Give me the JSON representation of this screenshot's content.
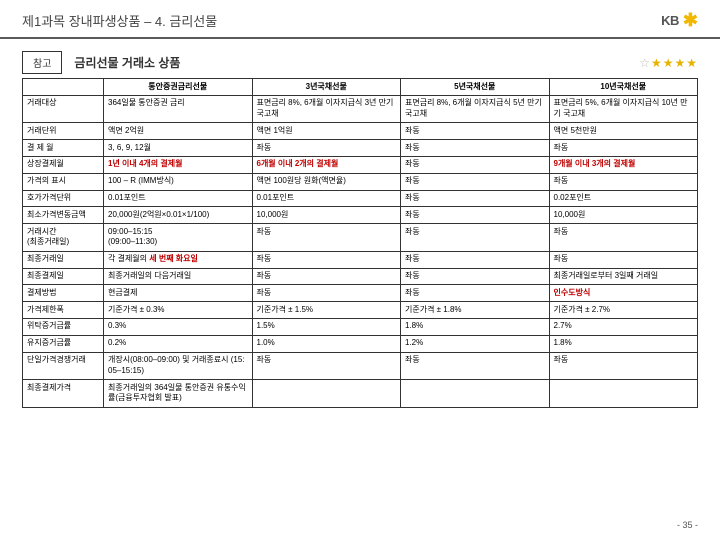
{
  "header": {
    "chapter_title": "제1과목 장내파생상품 – 4. 금리선물",
    "logo_text": "KB",
    "logo_star_glyph": "✱"
  },
  "subheader": {
    "ref_label": "참고",
    "section_title": "금리선물 거래소 상품",
    "stars_blank": "☆",
    "stars_filled": "★★★★"
  },
  "table": {
    "columns": [
      {
        "key": "c0",
        "label": ""
      },
      {
        "key": "c1",
        "label": "통안증권금리선물"
      },
      {
        "key": "c2",
        "label": "3년국채선물"
      },
      {
        "key": "c3",
        "label": "5년국채선물"
      },
      {
        "key": "c4",
        "label": "10년국채선물"
      }
    ],
    "rows": [
      {
        "h": "거래대상",
        "c1": "364일물 통안증권 금리",
        "c2": "표면금리 8%, 6개월 이자지급식 3년 만기 국고채",
        "c3": "표면금리 8%, 6개월 이자지급식 5년 만기 국고채",
        "c4": "표면금리 5%, 6개월 이자지급식 10년 만기 국고채"
      },
      {
        "h": "거래단위",
        "c1": "액면 2억원",
        "c2": "액면 1억원",
        "c3": "좌동",
        "c4": "액면 5천만원"
      },
      {
        "h": "결 제 월",
        "c1": "3, 6, 9, 12월",
        "c2": "좌동",
        "c3": "좌동",
        "c4": "좌동"
      },
      {
        "h": "상장결제월",
        "c1": {
          "text": "1년 이내 4개의 결제월",
          "red": true
        },
        "c2": {
          "text": "6개월 이내 2개의 결제월",
          "red": true
        },
        "c3": "좌동",
        "c4": {
          "text": "9개월 이내 3개의 결제월",
          "red": true
        }
      },
      {
        "h": "가격의 표시",
        "c1": "100 – R (IMM방식)",
        "c2": "액면 100원당 원화(액면율)",
        "c3": "좌동",
        "c4": "좌동"
      },
      {
        "h": "호가가격단위",
        "c1": "0.01포인트",
        "c2": "0.01포인트",
        "c3": "좌동",
        "c4": "0.02포인트"
      },
      {
        "h": "최소가격변동금액",
        "c1": "20,000원(2억원×0.01×1/100)",
        "c2": "10,000원",
        "c3": "좌동",
        "c4": "10,000원"
      },
      {
        "h": "거래시간\n(최종거래일)",
        "c1": "09:00–15:15\n(09:00–11:30)",
        "c2": "좌동",
        "c3": "좌동",
        "c4": "좌동"
      },
      {
        "h": "최종거래일",
        "c1": {
          "text_parts": [
            "각 결제월의 ",
            {
              "text": "세 번째 화요일",
              "red": true
            }
          ]
        },
        "c2": "좌동",
        "c3": "좌동",
        "c4": "좌동"
      },
      {
        "h": "최종결제일",
        "c1": "최종거래일의 다음거래일",
        "c2": "좌동",
        "c3": "좌동",
        "c4": "최종거래일로부터 3일째 거래일"
      },
      {
        "h": "결제방법",
        "c1": "현금결제",
        "c2": "좌동",
        "c3": "좌동",
        "c4": {
          "text": "인수도방식",
          "red": true
        }
      },
      {
        "h": "가격제한폭",
        "c1": "기준가격 ± 0.3%",
        "c2": "기준가격 ± 1.5%",
        "c3": "기준가격 ± 1.8%",
        "c4": "기준가격 ± 2.7%"
      },
      {
        "h": "위탁증거금률",
        "c1": "0.3%",
        "c2": "1.5%",
        "c3": "1.8%",
        "c4": "2.7%"
      },
      {
        "h": "유지증거금률",
        "c1": "0.2%",
        "c2": "1.0%",
        "c3": "1.2%",
        "c4": "1.8%"
      },
      {
        "h": "단일가격경쟁거래",
        "c1": "개장시(08:00–09:00) 및 거래종료시 (15:05–15:15)",
        "c2": "좌동",
        "c3": "좌동",
        "c4": "좌동"
      },
      {
        "h": "최종결제가격",
        "c1": "최종거래일의 364일물 통안증권 유통수익률(금융투자협회 발표)",
        "c2": "",
        "c3": "",
        "c4": ""
      }
    ],
    "group_separators_after": [
      0,
      1,
      2,
      3,
      6,
      9,
      12,
      14
    ]
  },
  "footer": {
    "page": "- 35 -"
  },
  "colors": {
    "rule": "#5a5a5a",
    "red": "#c00000",
    "star_gold": "#e6b400",
    "logo_gold": "#f2b800"
  }
}
